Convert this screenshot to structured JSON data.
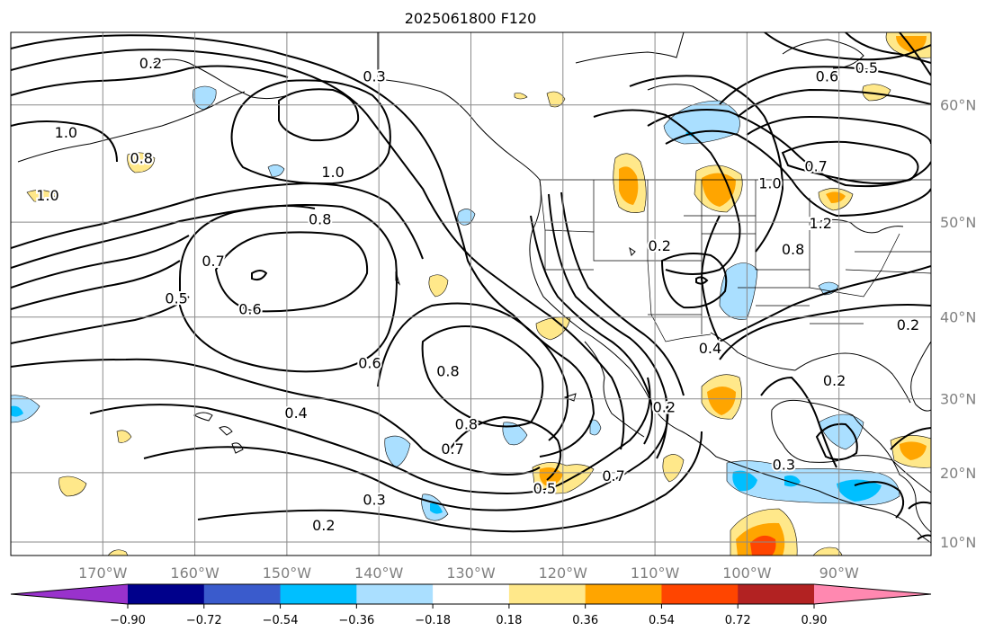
{
  "title": "2025061800 F120",
  "lon_ticks": [
    {
      "value": -170,
      "label": "170°W"
    },
    {
      "value": -160,
      "label": "160°W"
    },
    {
      "value": -150,
      "label": "150°W"
    },
    {
      "value": -140,
      "label": "140°W"
    },
    {
      "value": -130,
      "label": "130°W"
    },
    {
      "value": -120,
      "label": "120°W"
    },
    {
      "value": -110,
      "label": "110°W"
    },
    {
      "value": -100,
      "label": "100°W"
    },
    {
      "value": -90,
      "label": "90°W"
    }
  ],
  "lat_ticks": [
    {
      "value": 60,
      "label": "60°N"
    },
    {
      "value": 50,
      "label": "50°N"
    },
    {
      "value": 40,
      "label": "40°N"
    },
    {
      "value": 30,
      "label": "30°N"
    },
    {
      "value": 20,
      "label": "20°N"
    },
    {
      "value": 10,
      "label": "10°N"
    }
  ],
  "extent": {
    "lon_min": -180,
    "lon_max": -80,
    "lat_min": 8,
    "lat_max": 65
  },
  "colorbar": {
    "colors": [
      "#9932cc",
      "#00008b",
      "#3a5bcc",
      "#00bfff",
      "#aadfff",
      "#ffffff",
      "#ffe88a",
      "#ffa500",
      "#ff4500",
      "#b22222",
      "#ff88b0"
    ],
    "ticks": [
      "−0.90",
      "−0.72",
      "−0.54",
      "−0.36",
      "−0.18",
      "0.18",
      "0.36",
      "0.54",
      "0.72",
      "0.90"
    ]
  },
  "contour_labels": [
    {
      "text": "0.2",
      "lon": -164.8,
      "lat": 62.9
    },
    {
      "text": "0.3",
      "lon": -140.5,
      "lat": 62.0
    },
    {
      "text": "1.0",
      "lon": -174.0,
      "lat": 57.8
    },
    {
      "text": "0.8",
      "lon": -165.8,
      "lat": 55.7
    },
    {
      "text": "1.0",
      "lon": -176.0,
      "lat": 52.4
    },
    {
      "text": "1.0",
      "lon": -145.0,
      "lat": 54.5
    },
    {
      "text": "0.8",
      "lon": -146.4,
      "lat": 50.2
    },
    {
      "text": "0.7",
      "lon": -158.0,
      "lat": 46.0
    },
    {
      "text": "0.5",
      "lon": -162.0,
      "lat": 42.0
    },
    {
      "text": "0.6",
      "lon": -154.0,
      "lat": 40.8
    },
    {
      "text": "0.6",
      "lon": -141.0,
      "lat": 34.4
    },
    {
      "text": "0.8",
      "lon": -132.5,
      "lat": 33.4
    },
    {
      "text": "0.4",
      "lon": -149.0,
      "lat": 28.0
    },
    {
      "text": "0.8",
      "lon": -130.5,
      "lat": 26.5
    },
    {
      "text": "0.7",
      "lon": -132.0,
      "lat": 23.2
    },
    {
      "text": "0.7",
      "lon": -114.5,
      "lat": 19.4
    },
    {
      "text": "0.5",
      "lon": -122.0,
      "lat": 17.6
    },
    {
      "text": "0.3",
      "lon": -140.5,
      "lat": 16.0
    },
    {
      "text": "0.2",
      "lon": -146.0,
      "lat": 12.3
    },
    {
      "text": "0.2",
      "lon": -109.0,
      "lat": 28.8
    },
    {
      "text": "0.2",
      "lon": -109.5,
      "lat": 47.6
    },
    {
      "text": "0.4",
      "lon": -104.0,
      "lat": 36.2
    },
    {
      "text": "1.0",
      "lon": -97.5,
      "lat": 53.5
    },
    {
      "text": "0.7",
      "lon": -92.5,
      "lat": 55.0
    },
    {
      "text": "1.2",
      "lon": -92.0,
      "lat": 49.8
    },
    {
      "text": "0.8",
      "lon": -95.0,
      "lat": 47.2
    },
    {
      "text": "0.6",
      "lon": -91.3,
      "lat": 62.0
    },
    {
      "text": "0.5",
      "lon": -87.0,
      "lat": 62.6
    },
    {
      "text": "0.2",
      "lon": -90.5,
      "lat": 32.2
    },
    {
      "text": "0.3",
      "lon": -96.0,
      "lat": 21.0
    },
    {
      "text": "0.2",
      "lon": -82.5,
      "lat": 39.0
    }
  ]
}
